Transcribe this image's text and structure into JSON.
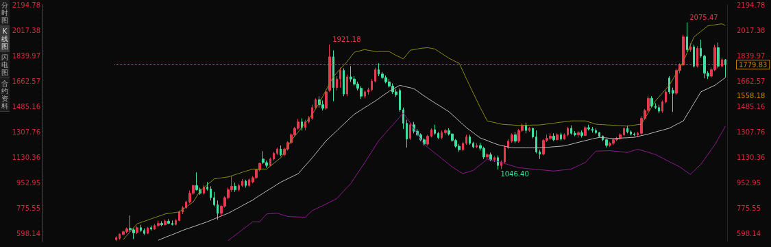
{
  "chart_data": {
    "type": "candlestick",
    "categories": [
      null,
      null,
      null,
      null,
      null,
      null,
      null,
      null,
      null,
      null,
      null,
      null,
      null,
      null,
      null,
      null,
      null,
      null,
      null,
      null,
      null,
      null,
      null,
      null,
      null,
      null,
      null,
      null,
      null,
      null,
      null,
      null,
      null,
      null,
      null,
      null,
      null,
      null,
      null,
      null,
      null,
      null,
      null,
      null,
      null,
      null,
      null,
      null,
      null,
      null,
      null,
      null,
      null,
      null,
      null,
      null,
      null,
      null,
      null,
      null,
      null,
      null,
      null,
      null,
      null,
      null,
      null,
      null,
      null,
      null,
      null,
      null,
      null,
      null,
      null,
      null,
      null,
      null,
      null,
      null,
      null,
      null,
      null,
      null,
      null,
      null,
      null,
      null,
      null,
      null,
      null,
      null,
      null,
      null,
      null,
      null,
      null,
      null,
      null,
      null,
      null,
      null,
      null,
      null,
      null,
      null,
      null,
      null,
      null,
      null,
      null,
      null,
      null,
      null,
      null,
      null,
      null,
      null,
      null,
      null,
      null,
      null,
      null,
      null,
      null,
      null,
      null,
      null,
      null,
      null,
      null,
      null,
      null,
      null,
      null,
      null,
      null,
      null,
      null,
      null,
      null,
      null,
      null,
      null,
      null,
      null,
      null,
      null,
      null,
      null,
      null,
      null,
      null,
      null,
      null,
      null,
      null,
      null,
      null,
      null,
      null,
      null,
      null,
      null,
      null,
      null,
      null,
      null,
      null,
      null,
      null,
      null,
      null,
      null,
      null
    ],
    "ohlc": [
      [
        556,
        580,
        545,
        570
      ],
      [
        565,
        600,
        556,
        595
      ],
      [
        592,
        620,
        585,
        612
      ],
      [
        612,
        640,
        600,
        632
      ],
      [
        635,
        725,
        610,
        625
      ],
      [
        625,
        640,
        560,
        603
      ],
      [
        605,
        650,
        595,
        640
      ],
      [
        640,
        660,
        610,
        620
      ],
      [
        620,
        635,
        590,
        600
      ],
      [
        600,
        645,
        595,
        638
      ],
      [
        640,
        655,
        620,
        630
      ],
      [
        630,
        665,
        625,
        655
      ],
      [
        655,
        690,
        645,
        670
      ],
      [
        670,
        685,
        650,
        660
      ],
      [
        660,
        695,
        655,
        685
      ],
      [
        685,
        700,
        665,
        670
      ],
      [
        670,
        690,
        655,
        662
      ],
      [
        662,
        700,
        655,
        690
      ],
      [
        690,
        760,
        685,
        750
      ],
      [
        750,
        790,
        735,
        780
      ],
      [
        780,
        830,
        770,
        820
      ],
      [
        820,
        900,
        810,
        880
      ],
      [
        880,
        940,
        870,
        935
      ],
      [
        935,
        1027,
        900,
        905
      ],
      [
        905,
        920,
        870,
        880
      ],
      [
        880,
        940,
        870,
        925
      ],
      [
        925,
        960,
        900,
        910
      ],
      [
        910,
        930,
        830,
        850
      ],
      [
        850,
        890,
        790,
        800
      ],
      [
        800,
        830,
        695,
        740
      ],
      [
        740,
        800,
        720,
        790
      ],
      [
        790,
        860,
        780,
        850
      ],
      [
        850,
        920,
        840,
        905
      ],
      [
        905,
        1000,
        890,
        930
      ],
      [
        930,
        955,
        890,
        905
      ],
      [
        905,
        945,
        895,
        935
      ],
      [
        935,
        980,
        925,
        965
      ],
      [
        965,
        975,
        920,
        935
      ],
      [
        935,
        985,
        925,
        975
      ],
      [
        960,
        1000,
        950,
        990
      ],
      [
        990,
        1050,
        980,
        1045
      ],
      [
        1045,
        1095,
        1035,
        1090
      ],
      [
        1120,
        1175,
        1085,
        1095
      ],
      [
        1095,
        1110,
        1060,
        1075
      ],
      [
        1075,
        1130,
        1070,
        1120
      ],
      [
        1120,
        1170,
        1110,
        1160
      ],
      [
        1160,
        1200,
        1150,
        1190
      ],
      [
        1190,
        1215,
        1140,
        1150
      ],
      [
        1150,
        1200,
        1140,
        1190
      ],
      [
        1190,
        1245,
        1180,
        1235
      ],
      [
        1235,
        1300,
        1225,
        1290
      ],
      [
        1290,
        1345,
        1280,
        1335
      ],
      [
        1335,
        1400,
        1325,
        1380
      ],
      [
        1380,
        1405,
        1320,
        1340
      ],
      [
        1340,
        1395,
        1320,
        1380
      ],
      [
        1380,
        1420,
        1370,
        1405
      ],
      [
        1405,
        1500,
        1395,
        1480
      ],
      [
        1480,
        1545,
        1470,
        1535
      ],
      [
        1535,
        1560,
        1480,
        1500
      ],
      [
        1500,
        1530,
        1460,
        1475
      ],
      [
        1475,
        1600,
        1465,
        1590
      ],
      [
        1600,
        1921.18,
        1590,
        1835
      ],
      [
        1835,
        1880,
        1525,
        1620
      ],
      [
        1620,
        1700,
        1600,
        1680
      ],
      [
        1680,
        1760,
        1620,
        1740
      ],
      [
        1740,
        1755,
        1560,
        1575
      ],
      [
        1575,
        1710,
        1560,
        1695
      ],
      [
        1695,
        1770,
        1660,
        1680
      ],
      [
        1680,
        1700,
        1635,
        1645
      ],
      [
        1645,
        1660,
        1600,
        1615
      ],
      [
        1615,
        1630,
        1540,
        1560
      ],
      [
        1560,
        1600,
        1545,
        1590
      ],
      [
        1590,
        1620,
        1570,
        1605
      ],
      [
        1605,
        1680,
        1595,
        1665
      ],
      [
        1665,
        1760,
        1655,
        1745
      ],
      [
        1745,
        1790,
        1700,
        1715
      ],
      [
        1715,
        1730,
        1680,
        1690
      ],
      [
        1690,
        1705,
        1650,
        1660
      ],
      [
        1660,
        1680,
        1620,
        1630
      ],
      [
        1630,
        1650,
        1575,
        1590
      ],
      [
        1590,
        1610,
        1555,
        1570
      ],
      [
        1600,
        1615,
        1450,
        1465
      ],
      [
        1465,
        1480,
        1330,
        1370
      ],
      [
        1370,
        1395,
        1200,
        1260
      ],
      [
        1265,
        1375,
        1255,
        1360
      ],
      [
        1360,
        1380,
        1300,
        1315
      ],
      [
        1315,
        1330,
        1280,
        1290
      ],
      [
        1290,
        1300,
        1245,
        1255
      ],
      [
        1255,
        1265,
        1215,
        1225
      ],
      [
        1225,
        1290,
        1215,
        1280
      ],
      [
        1280,
        1335,
        1270,
        1325
      ],
      [
        1325,
        1360,
        1290,
        1300
      ],
      [
        1300,
        1310,
        1260,
        1270
      ],
      [
        1270,
        1320,
        1260,
        1305
      ],
      [
        1305,
        1330,
        1290,
        1320
      ],
      [
        1320,
        1335,
        1285,
        1295
      ],
      [
        1295,
        1300,
        1240,
        1250
      ],
      [
        1250,
        1260,
        1200,
        1210
      ],
      [
        1210,
        1225,
        1170,
        1185
      ],
      [
        1185,
        1240,
        1175,
        1230
      ],
      [
        1230,
        1290,
        1220,
        1275
      ],
      [
        1275,
        1290,
        1220,
        1230
      ],
      [
        1230,
        1240,
        1195,
        1205
      ],
      [
        1205,
        1230,
        1195,
        1215
      ],
      [
        1215,
        1235,
        1180,
        1195
      ],
      [
        1195,
        1205,
        1120,
        1135
      ],
      [
        1135,
        1160,
        1125,
        1150
      ],
      [
        1150,
        1165,
        1105,
        1115
      ],
      [
        1115,
        1140,
        1100,
        1130
      ],
      [
        1130,
        1145,
        1046.4,
        1075
      ],
      [
        1075,
        1110,
        1050,
        1100
      ],
      [
        1100,
        1215,
        1090,
        1200
      ],
      [
        1200,
        1260,
        1190,
        1245
      ],
      [
        1245,
        1300,
        1235,
        1290
      ],
      [
        1290,
        1310,
        1230,
        1245
      ],
      [
        1245,
        1330,
        1235,
        1320
      ],
      [
        1320,
        1370,
        1310,
        1355
      ],
      [
        1355,
        1375,
        1300,
        1320
      ],
      [
        1320,
        1345,
        1310,
        1335
      ],
      [
        1335,
        1340,
        1265,
        1275
      ],
      [
        1275,
        1320,
        1160,
        1170
      ],
      [
        1170,
        1185,
        1120,
        1155
      ],
      [
        1155,
        1260,
        1145,
        1250
      ],
      [
        1250,
        1290,
        1240,
        1265
      ],
      [
        1265,
        1300,
        1255,
        1280
      ],
      [
        1280,
        1300,
        1245,
        1255
      ],
      [
        1255,
        1300,
        1250,
        1290
      ],
      [
        1290,
        1305,
        1250,
        1260
      ],
      [
        1260,
        1300,
        1255,
        1290
      ],
      [
        1290,
        1345,
        1280,
        1335
      ],
      [
        1335,
        1355,
        1290,
        1300
      ],
      [
        1300,
        1315,
        1280,
        1290
      ],
      [
        1290,
        1315,
        1270,
        1305
      ],
      [
        1305,
        1320,
        1270,
        1285
      ],
      [
        1285,
        1350,
        1280,
        1340
      ],
      [
        1340,
        1360,
        1320,
        1330
      ],
      [
        1330,
        1345,
        1305,
        1320
      ],
      [
        1320,
        1335,
        1295,
        1305
      ],
      [
        1305,
        1310,
        1270,
        1280
      ],
      [
        1280,
        1285,
        1245,
        1255
      ],
      [
        1255,
        1260,
        1200,
        1215
      ],
      [
        1215,
        1240,
        1205,
        1230
      ],
      [
        1230,
        1265,
        1220,
        1255
      ],
      [
        1255,
        1275,
        1245,
        1265
      ],
      [
        1265,
        1300,
        1255,
        1290
      ],
      [
        1290,
        1340,
        1280,
        1335
      ],
      [
        1335,
        1355,
        1300,
        1310
      ],
      [
        1310,
        1320,
        1285,
        1295
      ],
      [
        1295,
        1305,
        1280,
        1290
      ],
      [
        1290,
        1310,
        1275,
        1300
      ],
      [
        1300,
        1420,
        1290,
        1405
      ],
      [
        1405,
        1470,
        1395,
        1460
      ],
      [
        1460,
        1560,
        1450,
        1545
      ],
      [
        1545,
        1560,
        1480,
        1490
      ],
      [
        1490,
        1510,
        1470,
        1480
      ],
      [
        1480,
        1500,
        1440,
        1455
      ],
      [
        1455,
        1530,
        1445,
        1520
      ],
      [
        1520,
        1600,
        1510,
        1590
      ],
      [
        1687,
        1700,
        1575,
        1590
      ],
      [
        1600,
        1620,
        1450,
        1580
      ],
      [
        1580,
        1750,
        1570,
        1740
      ],
      [
        1740,
        1790,
        1720,
        1780
      ],
      [
        1780,
        1990,
        1770,
        1975
      ],
      [
        1975,
        2075.47,
        1870,
        1885
      ],
      [
        1885,
        1930,
        1870,
        1905
      ],
      [
        1905,
        1920,
        1760,
        1770
      ],
      [
        1770,
        1910,
        1760,
        1895
      ],
      [
        1895,
        1955,
        1830,
        1840
      ],
      [
        1840,
        1850,
        1685,
        1720
      ],
      [
        1720,
        1735,
        1680,
        1700
      ],
      [
        1700,
        1760,
        1690,
        1745
      ],
      [
        1745,
        1920,
        1735,
        1900
      ],
      [
        1900,
        1935,
        1755,
        1770
      ],
      [
        1770,
        1830,
        1760,
        1815
      ],
      [
        1815,
        1820,
        1690,
        1779.83
      ]
    ],
    "colors": [
      "#e8384f",
      "#e8384f",
      "#e8384f",
      "#e8384f",
      "#3de0a0",
      "#3de0a0",
      "#e8384f",
      "#3de0a0",
      "#3de0a0",
      "#e8384f",
      "#3de0a0",
      "#e8384f",
      "#e8384f",
      "#3de0a0",
      "#e8384f",
      "#3de0a0",
      "#3de0a0",
      "#e8384f",
      "#e8384f",
      "#e8384f",
      "#e8384f",
      "#e8384f",
      "#e8384f",
      "#3de0a0",
      "#3de0a0",
      "#e8384f",
      "#3de0a0",
      "#3de0a0",
      "#3de0a0",
      "#3de0a0",
      "#e8384f",
      "#e8384f",
      "#e8384f",
      "#e8384f",
      "#3de0a0",
      "#e8384f",
      "#e8384f",
      "#3de0a0",
      "#e8384f",
      "#e8384f",
      "#e8384f",
      "#e8384f",
      "#3de0a0",
      "#3de0a0",
      "#e8384f",
      "#e8384f",
      "#e8384f",
      "#3de0a0",
      "#e8384f",
      "#e8384f",
      "#e8384f",
      "#e8384f",
      "#e8384f",
      "#3de0a0",
      "#e8384f",
      "#e8384f",
      "#e8384f",
      "#e8384f",
      "#3de0a0",
      "#3de0a0",
      "#e8384f",
      "#e8384f",
      "#3de0a0",
      "#e8384f",
      "#e8384f",
      "#3de0a0",
      "#e8384f",
      "#3de0a0",
      "#3de0a0",
      "#3de0a0",
      "#3de0a0",
      "#e8384f",
      "#e8384f",
      "#e8384f",
      "#e8384f",
      "#3de0a0",
      "#3de0a0",
      "#3de0a0",
      "#3de0a0",
      "#3de0a0",
      "#3de0a0",
      "#3de0a0",
      "#3de0a0",
      "#3de0a0",
      "#e8384f",
      "#3de0a0",
      "#3de0a0",
      "#3de0a0",
      "#3de0a0",
      "#e8384f",
      "#e8384f",
      "#3de0a0",
      "#3de0a0",
      "#e8384f",
      "#e8384f",
      "#3de0a0",
      "#3de0a0",
      "#3de0a0",
      "#3de0a0",
      "#e8384f",
      "#e8384f",
      "#3de0a0",
      "#3de0a0",
      "#e8384f",
      "#3de0a0",
      "#3de0a0",
      "#e8384f",
      "#3de0a0",
      "#e8384f",
      "#3de0a0",
      "#e8384f",
      "#e8384f",
      "#e8384f",
      "#e8384f",
      "#3de0a0",
      "#e8384f",
      "#e8384f",
      "#3de0a0",
      "#e8384f",
      "#3de0a0",
      "#3de0a0",
      "#3de0a0",
      "#e8384f",
      "#e8384f",
      "#e8384f",
      "#3de0a0",
      "#e8384f",
      "#3de0a0",
      "#e8384f",
      "#e8384f",
      "#3de0a0",
      "#3de0a0",
      "#e8384f",
      "#3de0a0",
      "#e8384f",
      "#3de0a0",
      "#3de0a0",
      "#3de0a0",
      "#3de0a0",
      "#3de0a0",
      "#3de0a0",
      "#e8384f",
      "#e8384f",
      "#e8384f",
      "#e8384f",
      "#e8384f",
      "#3de0a0",
      "#3de0a0",
      "#3de0a0",
      "#e8384f",
      "#e8384f",
      "#e8384f",
      "#e8384f",
      "#3de0a0",
      "#3de0a0",
      "#3de0a0",
      "#e8384f",
      "#e8384f",
      "#3de0a0",
      "#3de0a0",
      "#e8384f",
      "#e8384f",
      "#e8384f",
      "#3de0a0",
      "#e8384f",
      "#3de0a0",
      "#e8384f",
      "#3de0a0",
      "#3de0a0",
      "#3de0a0",
      "#e8384f",
      "#e8384f",
      "#3de0a0",
      "#e8384f",
      "#3de0a0"
    ],
    "series": [
      {
        "type": "line",
        "color": "#8c8c14",
        "values": [
          null,
          null,
          556,
          584,
          612,
          639,
          667,
          676,
          684,
          693,
          702,
          710,
          719,
          727,
          736,
          740,
          743,
          747,
          750,
          768,
          785,
          803,
          820,
          859,
          898,
          919,
          940,
          960,
          981,
          985,
          988,
          992,
          995,
          1003,
          1011,
          1019,
          1027,
          1035,
          1042,
          1050,
          1050,
          1050,
          1050,
          1050,
          1070,
          1090,
          1109,
          1129,
          1169,
          1209,
          1249,
          1280,
          1310,
          1341,
          1372,
          1402,
          1433,
          1473,
          1512,
          1558,
          1604,
          1650,
          1696,
          1723,
          1750,
          1776,
          1803,
          1835,
          1867,
          1873,
          1880,
          1886,
          1881,
          1877,
          1872,
          1872,
          1872,
          1872,
          1872,
          1858,
          1844,
          1833,
          1821,
          1851,
          1881,
          1886,
          1890,
          1895,
          1897,
          1899,
          1895,
          1890,
          1874,
          1858,
          1842,
          1826,
          1814,
          1801,
          1789,
          1736,
          1683,
          1632,
          1581,
          1530,
          1479,
          1433,
          1387,
          1381,
          1376,
          1370,
          1364,
          1362,
          1360,
          1359,
          1357,
          1355,
          1356,
          1356,
          1357,
          1358,
          1358,
          1359,
          1362,
          1365,
          1368,
          1371,
          1375,
          1378,
          1381,
          1384,
          1387,
          1387,
          1387,
          1387,
          1387,
          1379,
          1372,
          1364,
          1362,
          1361,
          1359,
          1358,
          1356,
          1355,
          1353,
          1352,
          1350,
          1354,
          1357,
          1361,
          1364,
          1405,
          1445,
          1486,
          1526,
          1554,
          1581,
          1609,
          1636,
          1678,
          1720,
          1761,
          1803,
          1860,
          1916,
          1973,
          1993,
          2013,
          2032,
          2052,
          2056,
          2059,
          2063,
          2066,
          2054
        ]
      },
      {
        "type": "line",
        "color": "#bdbdbd",
        "values": [
          null,
          null,
          null,
          null,
          null,
          null,
          null,
          null,
          null,
          null,
          null,
          null,
          552,
          562,
          572,
          582,
          591,
          601,
          611,
          621,
          630,
          638,
          647,
          655,
          664,
          672,
          681,
          691,
          701,
          711,
          721,
          731,
          741,
          754,
          767,
          780,
          794,
          807,
          820,
          833,
          850,
          866,
          881,
          897,
          912,
          927,
          943,
          958,
          970,
          982,
          994,
          1006,
          1018,
          1046,
          1074,
          1101,
          1129,
          1159,
          1189,
          1219,
          1249,
          1272,
          1295,
          1318,
          1341,
          1364,
          1387,
          1410,
          1433,
          1449,
          1464,
          1480,
          1495,
          1511,
          1526,
          1543,
          1561,
          1578,
          1595,
          1609,
          1622,
          1636,
          1630,
          1624,
          1619,
          1613,
          1596,
          1578,
          1561,
          1544,
          1529,
          1513,
          1498,
          1483,
          1467,
          1452,
          1430,
          1408,
          1385,
          1363,
          1341,
          1322,
          1304,
          1285,
          1267,
          1258,
          1249,
          1239,
          1230,
          1221,
          1215,
          1209,
          1204,
          1198,
          1198,
          1198,
          1198,
          1198,
          1198,
          1198,
          1198,
          1198,
          1200,
          1202,
          1204,
          1206,
          1208,
          1210,
          1212,
          1218,
          1224,
          1231,
          1237,
          1243,
          1249,
          1255,
          1261,
          1266,
          1272,
          1270,
          1268,
          1265,
          1263,
          1265,
          1266,
          1268,
          1269,
          1271,
          1272,
          1278,
          1284,
          1289,
          1295,
          1302,
          1309,
          1316,
          1322,
          1329,
          1336,
          1349,
          1362,
          1374,
          1387,
          1428,
          1468,
          1509,
          1549,
          1590,
          1602,
          1613,
          1625,
          1636,
          1654,
          1672,
          1690
        ]
      },
      {
        "type": "line",
        "color": "#8e1b8e",
        "values": [
          null,
          null,
          null,
          null,
          null,
          null,
          null,
          null,
          null,
          null,
          null,
          null,
          null,
          null,
          null,
          null,
          null,
          null,
          null,
          null,
          null,
          null,
          null,
          null,
          null,
          null,
          null,
          null,
          null,
          null,
          null,
          null,
          550,
          569,
          587,
          606,
          625,
          644,
          662,
          681,
          681,
          681,
          709,
          736,
          738,
          739,
          741,
          733,
          726,
          718,
          717,
          716,
          715,
          714,
          713,
          736,
          759,
          771,
          783,
          794,
          806,
          818,
          831,
          843,
          870,
          896,
          923,
          949,
          986,
          1023,
          1059,
          1096,
          1134,
          1172,
          1211,
          1249,
          1277,
          1304,
          1332,
          1359,
          1387,
          1415,
          1442,
          1408,
          1373,
          1335,
          1297,
          1259,
          1221,
          1202,
          1182,
          1163,
          1143,
          1123,
          1104,
          1084,
          1064,
          1049,
          1033,
          1018,
          1026,
          1033,
          1041,
          1061,
          1080,
          1100,
          1120,
          1114,
          1108,
          1102,
          1096,
          1089,
          1081,
          1074,
          1066,
          1059,
          1057,
          1054,
          1052,
          1050,
          1047,
          1045,
          1043,
          1041,
          1038,
          1036,
          1039,
          1042,
          1044,
          1047,
          1050,
          1062,
          1073,
          1085,
          1096,
          1122,
          1149,
          1175,
          1176,
          1177,
          1178,
          1179,
          1176,
          1174,
          1171,
          1169,
          1166,
          1174,
          1181,
          1189,
          1182,
          1174,
          1167,
          1159,
          1152,
          1139,
          1127,
          1114,
          1102,
          1089,
          1077,
          1064,
          1047,
          1030,
          1013,
          1036,
          1060,
          1083,
          1118,
          1152,
          1187,
          1221,
          1264,
          1307,
          1350
        ]
      }
    ],
    "ylim": [
      543,
      2204
    ],
    "yticks": [
      598.14,
      775.55,
      952.95,
      1130.36,
      1307.76,
      1485.16,
      1662.57,
      1839.97,
      2017.38,
      2194.78
    ],
    "y2lim": [
      543,
      2204
    ],
    "y2ticks": [
      598.14,
      775.55,
      952.95,
      1130.36,
      1307.76,
      1485.16,
      1662.57,
      1839.97,
      2017.38,
      2194.78
    ],
    "ref_lines": [
      {
        "axis": "y2",
        "value": 1779.83,
        "label": "1779.83",
        "color": "#c88000",
        "line_style": "dotted"
      }
    ],
    "annotations": [
      "分时图",
      "K线图",
      "闪电图",
      "合约资料",
      "1921.18",
      "2075.47",
      "1046.40",
      "1558.18"
    ],
    "grid": false
  }
}
